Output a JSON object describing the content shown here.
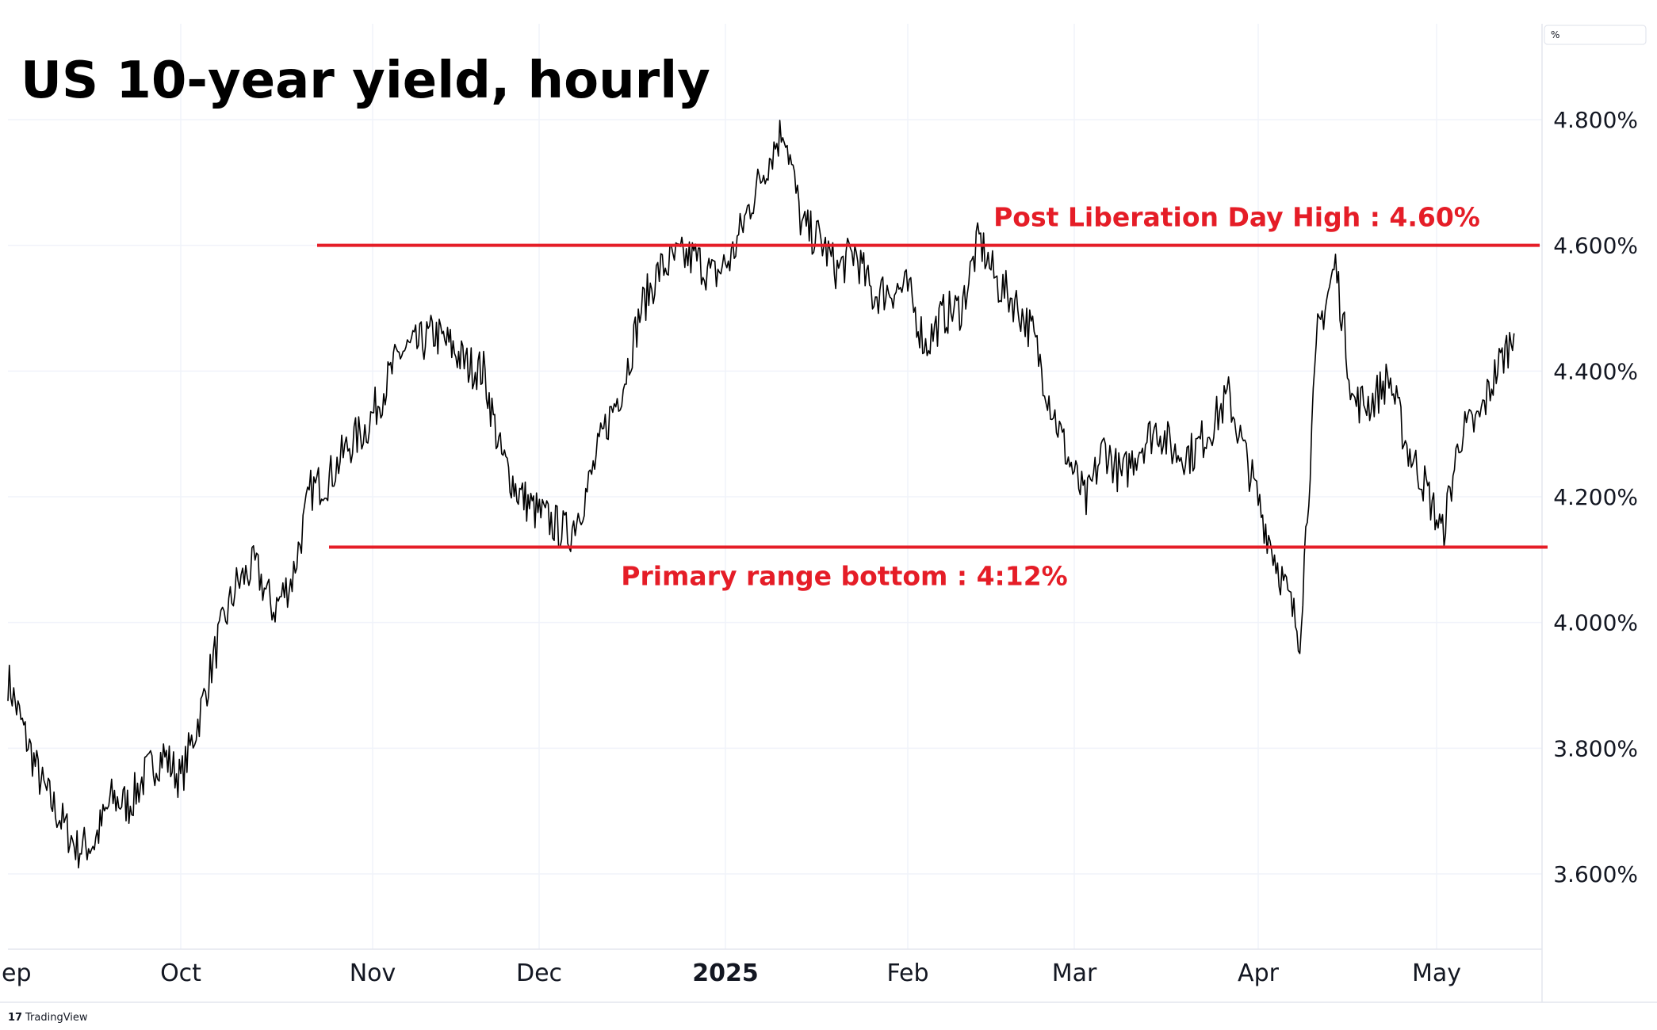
{
  "chart_data": {
    "type": "line",
    "title": "US 10-year yield, hourly",
    "unit_label": "%",
    "x_labels": [
      "ep",
      "Oct",
      "Nov",
      "Dec",
      "2025",
      "Feb",
      "Mar",
      "Apr",
      "May"
    ],
    "y_ticks": [
      3.6,
      3.8,
      4.0,
      4.2,
      4.4,
      4.6,
      4.8
    ],
    "y_tick_labels": [
      "3.600%",
      "3.800%",
      "4.000%",
      "4.200%",
      "4.400%",
      "4.600%",
      "4.800%"
    ],
    "ylim": [
      3.48,
      4.92
    ],
    "grid": true,
    "series": [
      {
        "color": "#000000",
        "x": [
          "2024-09-01",
          "2024-09-04",
          "2024-09-07",
          "2024-09-10",
          "2024-09-13",
          "2024-09-16",
          "2024-09-19",
          "2024-09-22",
          "2024-09-25",
          "2024-09-28",
          "2024-10-01",
          "2024-10-04",
          "2024-10-07",
          "2024-10-10",
          "2024-10-13",
          "2024-10-16",
          "2024-10-19",
          "2024-10-22",
          "2024-10-25",
          "2024-10-28",
          "2024-10-31",
          "2024-11-03",
          "2024-11-06",
          "2024-11-09",
          "2024-11-12",
          "2024-11-15",
          "2024-11-18",
          "2024-11-21",
          "2024-11-24",
          "2024-11-27",
          "2024-11-30",
          "2024-12-03",
          "2024-12-06",
          "2024-12-09",
          "2024-12-12",
          "2024-12-15",
          "2024-12-18",
          "2024-12-21",
          "2024-12-24",
          "2024-12-27",
          "2024-12-30",
          "2025-01-02",
          "2025-01-05",
          "2025-01-08",
          "2025-01-11",
          "2025-01-14",
          "2025-01-17",
          "2025-01-20",
          "2025-01-23",
          "2025-01-26",
          "2025-01-29",
          "2025-02-01",
          "2025-02-04",
          "2025-02-07",
          "2025-02-10",
          "2025-02-13",
          "2025-02-16",
          "2025-02-19",
          "2025-02-22",
          "2025-02-25",
          "2025-02-28",
          "2025-03-03",
          "2025-03-06",
          "2025-03-09",
          "2025-03-12",
          "2025-03-15",
          "2025-03-18",
          "2025-03-21",
          "2025-03-24",
          "2025-03-27",
          "2025-03-30",
          "2025-04-02",
          "2025-04-05",
          "2025-04-08",
          "2025-04-11",
          "2025-04-14",
          "2025-04-17",
          "2025-04-20",
          "2025-04-23",
          "2025-04-26",
          "2025-04-29",
          "2025-05-02",
          "2025-05-05",
          "2025-05-08",
          "2025-05-11",
          "2025-05-14"
        ],
        "values": [
          3.91,
          3.82,
          3.74,
          3.69,
          3.64,
          3.65,
          3.72,
          3.71,
          3.76,
          3.79,
          3.75,
          3.85,
          3.97,
          4.06,
          4.09,
          4.02,
          4.07,
          4.21,
          4.23,
          4.28,
          4.31,
          4.37,
          4.43,
          4.44,
          4.46,
          4.44,
          4.41,
          4.4,
          4.27,
          4.21,
          4.18,
          4.16,
          4.14,
          4.21,
          4.31,
          4.38,
          4.5,
          4.56,
          4.58,
          4.58,
          4.55,
          4.58,
          4.66,
          4.73,
          4.79,
          4.63,
          4.61,
          4.56,
          4.59,
          4.52,
          4.53,
          4.53,
          4.44,
          4.49,
          4.5,
          4.61,
          4.54,
          4.51,
          4.46,
          4.35,
          4.26,
          4.19,
          4.28,
          4.23,
          4.28,
          4.31,
          4.27,
          4.27,
          4.31,
          4.36,
          4.26,
          4.16,
          4.07,
          3.98,
          4.46,
          4.57,
          4.35,
          4.35,
          4.39,
          4.28,
          4.22,
          4.14,
          4.3,
          4.32,
          4.4,
          4.46
        ]
      }
    ],
    "annotations": [
      {
        "label": "Post Liberation Day High : 4.60%",
        "y": 4.6,
        "color": "#e51d27"
      },
      {
        "label": "Primary range bottom : 4:12%",
        "y": 4.12,
        "color": "#e51d27"
      }
    ]
  },
  "branding": {
    "label": "TradingView"
  }
}
